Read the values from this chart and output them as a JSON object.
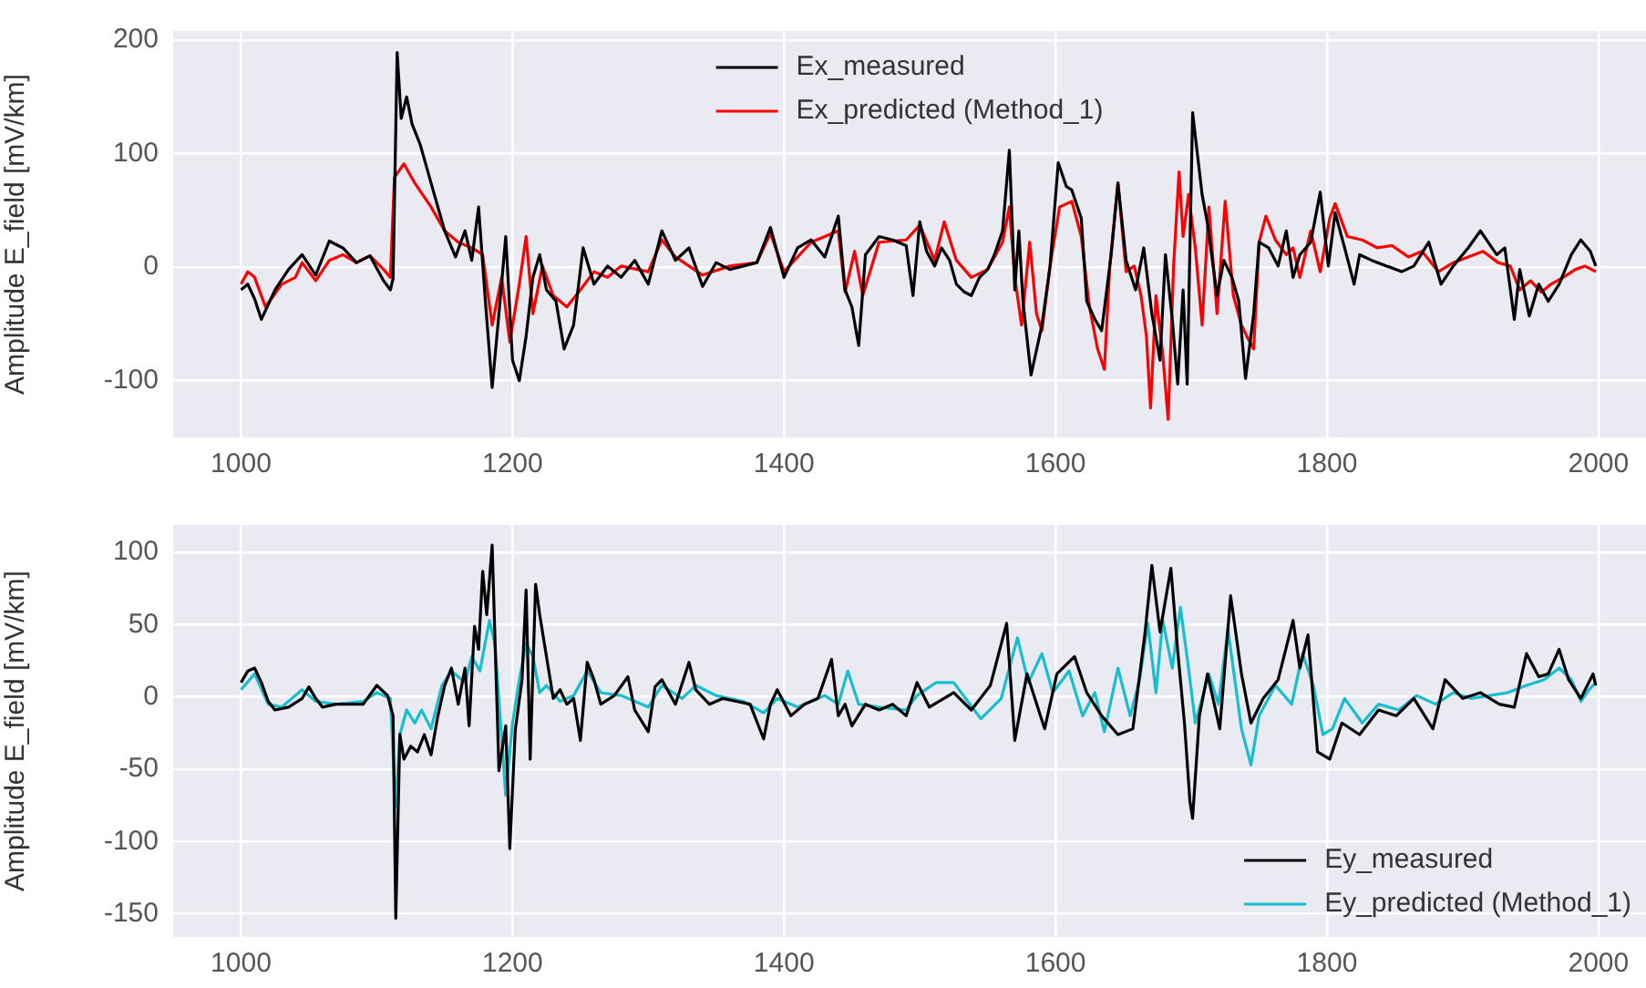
{
  "chart_data": [
    {
      "type": "line",
      "ylabel": "Amplitude E_field [mV/km]",
      "xlim": [
        950,
        2035
      ],
      "ylim": [
        -150,
        208
      ],
      "xticks": [
        1000,
        1200,
        1400,
        1600,
        1800,
        2000
      ],
      "yticks": [
        -100,
        0,
        100,
        200
      ],
      "grid": true,
      "legend": "top",
      "series": [
        {
          "name": "Ex_measured",
          "color": "#000000",
          "x": [
            1000,
            1005,
            1010,
            1015,
            1025,
            1035,
            1045,
            1055,
            1065,
            1075,
            1085,
            1095,
            1105,
            1110,
            1112,
            1115,
            1118,
            1122,
            1126,
            1132,
            1140,
            1150,
            1158,
            1165,
            1170,
            1175,
            1180,
            1185,
            1190,
            1195,
            1200,
            1205,
            1210,
            1215,
            1220,
            1225,
            1232,
            1238,
            1245,
            1252,
            1260,
            1270,
            1280,
            1290,
            1300,
            1310,
            1320,
            1330,
            1340,
            1350,
            1360,
            1370,
            1380,
            1390,
            1400,
            1410,
            1420,
            1430,
            1440,
            1445,
            1450,
            1455,
            1460,
            1470,
            1480,
            1490,
            1495,
            1500,
            1505,
            1511,
            1516,
            1522,
            1527,
            1533,
            1538,
            1544,
            1550,
            1555,
            1561,
            1566,
            1570,
            1573,
            1576,
            1582,
            1590,
            1596,
            1602,
            1608,
            1612,
            1619,
            1623,
            1629,
            1634,
            1641,
            1646,
            1652,
            1659,
            1665,
            1671,
            1677,
            1681,
            1686,
            1690,
            1694,
            1697,
            1701,
            1708,
            1712,
            1719,
            1724,
            1730,
            1735,
            1740,
            1746,
            1750,
            1757,
            1764,
            1770,
            1775,
            1780,
            1788,
            1795,
            1801,
            1806,
            1813,
            1820,
            1824,
            1833,
            1844,
            1855,
            1864,
            1875,
            1884,
            1893,
            1904,
            1913,
            1925,
            1931,
            1938,
            1942,
            1949,
            1956,
            1963,
            1971,
            1980,
            1987,
            1994,
            1998
          ],
          "values": [
            -20,
            -15,
            -28,
            -46,
            -20,
            -2,
            11,
            -7,
            23,
            17,
            4,
            10,
            -12,
            -20,
            -10,
            189,
            131,
            150,
            126,
            108,
            74,
            32,
            9,
            32,
            6,
            53,
            -30,
            -106,
            -41,
            27,
            -82,
            -100,
            -61,
            -9,
            11,
            -20,
            -30,
            -72,
            -51,
            17,
            -15,
            1,
            -9,
            6,
            -15,
            32,
            6,
            17,
            -17,
            4,
            -2,
            1,
            4,
            35,
            -9,
            17,
            24,
            9,
            45,
            -20,
            -35,
            -69,
            11,
            27,
            24,
            19,
            -25,
            40,
            14,
            1,
            17,
            6,
            -15,
            -22,
            -25,
            -9,
            -2,
            11,
            32,
            103,
            -20,
            32,
            -30,
            -95,
            -51,
            1,
            92,
            71,
            68,
            43,
            -30,
            -46,
            -56,
            11,
            74,
            6,
            -20,
            17,
            -41,
            -82,
            11,
            -46,
            -103,
            -20,
            -103,
            136,
            64,
            38,
            -25,
            6,
            -9,
            -30,
            -98,
            -41,
            22,
            17,
            1,
            32,
            -9,
            11,
            22,
            66,
            1,
            48,
            17,
            -15,
            11,
            6,
            1,
            -4,
            1,
            22,
            -15,
            1,
            17,
            32,
            11,
            17,
            -46,
            -2,
            -43,
            -15,
            -30,
            -15,
            11,
            24,
            14,
            1
          ]
        },
        {
          "name": "Ex_predicted (Method_1)",
          "color": "#ff0000",
          "x": [
            1000,
            1005,
            1010,
            1018,
            1030,
            1040,
            1045,
            1055,
            1065,
            1075,
            1085,
            1095,
            1105,
            1110,
            1113,
            1120,
            1128,
            1140,
            1150,
            1160,
            1170,
            1178,
            1185,
            1192,
            1198,
            1205,
            1210,
            1215,
            1222,
            1230,
            1240,
            1250,
            1260,
            1270,
            1280,
            1300,
            1310,
            1320,
            1340,
            1360,
            1380,
            1390,
            1400,
            1420,
            1440,
            1445,
            1452,
            1458,
            1470,
            1490,
            1500,
            1511,
            1518,
            1527,
            1538,
            1550,
            1561,
            1566,
            1570,
            1575,
            1581,
            1586,
            1590,
            1596,
            1603,
            1612,
            1619,
            1625,
            1631,
            1636,
            1640,
            1646,
            1652,
            1658,
            1663,
            1667,
            1670,
            1674,
            1679,
            1683,
            1687,
            1691,
            1694,
            1698,
            1703,
            1708,
            1713,
            1719,
            1725,
            1731,
            1737,
            1741,
            1746,
            1750,
            1755,
            1762,
            1770,
            1775,
            1780,
            1788,
            1795,
            1802,
            1806,
            1815,
            1826,
            1837,
            1848,
            1860,
            1870,
            1882,
            1893,
            1904,
            1915,
            1926,
            1935,
            1942,
            1950,
            1958,
            1965,
            1974,
            1983,
            1990,
            1998
          ],
          "values": [
            -15,
            -4,
            -9,
            -35,
            -15,
            -9,
            4,
            -12,
            6,
            11,
            4,
            10,
            -2,
            -9,
            79,
            91,
            74,
            53,
            32,
            22,
            17,
            11,
            -51,
            -9,
            -66,
            -15,
            27,
            -41,
            1,
            -25,
            -35,
            -20,
            -4,
            -9,
            1,
            -4,
            24,
            9,
            -7,
            1,
            4,
            30,
            -4,
            22,
            32,
            -22,
            14,
            -25,
            22,
            24,
            37,
            6,
            40,
            6,
            -9,
            -2,
            22,
            53,
            -9,
            -51,
            22,
            -41,
            -56,
            1,
            53,
            58,
            27,
            -35,
            -72,
            -90,
            1,
            74,
            -4,
            1,
            -25,
            -61,
            -124,
            -25,
            -77,
            -134,
            1,
            84,
            27,
            64,
            17,
            -51,
            53,
            -41,
            58,
            -25,
            -51,
            -61,
            -72,
            22,
            45,
            24,
            11,
            17,
            -9,
            32,
            -4,
            43,
            56,
            27,
            24,
            17,
            19,
            9,
            14,
            -4,
            4,
            9,
            14,
            4,
            1,
            -20,
            -12,
            -22,
            -15,
            -9,
            -2,
            1,
            -4
          ]
        }
      ]
    },
    {
      "type": "line",
      "ylabel": "Amplitude E_field [mV/km]",
      "xlim": [
        950,
        2035
      ],
      "ylim": [
        -166,
        119
      ],
      "xticks": [
        1000,
        1200,
        1400,
        1600,
        1800,
        2000
      ],
      "yticks": [
        -150,
        -100,
        -50,
        0,
        50,
        100
      ],
      "grid": true,
      "legend": "bottom right",
      "series": [
        {
          "name": "Ey_measured",
          "color": "#000000",
          "x": [
            1000,
            1005,
            1010,
            1015,
            1020,
            1025,
            1035,
            1045,
            1050,
            1055,
            1060,
            1070,
            1080,
            1090,
            1100,
            1108,
            1112,
            1114,
            1117,
            1120,
            1125,
            1130,
            1135,
            1140,
            1145,
            1150,
            1155,
            1160,
            1165,
            1168,
            1172,
            1175,
            1178,
            1181,
            1185,
            1190,
            1195,
            1198,
            1202,
            1207,
            1210,
            1213,
            1217,
            1220,
            1225,
            1230,
            1235,
            1240,
            1245,
            1250,
            1255,
            1260,
            1265,
            1275,
            1285,
            1290,
            1300,
            1305,
            1310,
            1320,
            1330,
            1335,
            1345,
            1355,
            1365,
            1375,
            1385,
            1390,
            1395,
            1405,
            1415,
            1425,
            1435,
            1440,
            1445,
            1450,
            1460,
            1470,
            1480,
            1490,
            1498,
            1507,
            1525,
            1538,
            1552,
            1564,
            1570,
            1579,
            1592,
            1601,
            1614,
            1623,
            1634,
            1646,
            1657,
            1666,
            1671,
            1677,
            1685,
            1690,
            1695,
            1699,
            1701,
            1706,
            1712,
            1721,
            1729,
            1737,
            1744,
            1753,
            1764,
            1775,
            1780,
            1786,
            1793,
            1802,
            1811,
            1824,
            1838,
            1851,
            1864,
            1878,
            1887,
            1900,
            1913,
            1927,
            1938,
            1947,
            1956,
            1963,
            1971,
            1978,
            1987,
            1996,
            1998
          ],
          "values": [
            10,
            18,
            20,
            10,
            -3,
            -9,
            -7,
            -1,
            7,
            -1,
            -7,
            -5,
            -5,
            -5,
            8,
            1,
            -13,
            -153,
            -26,
            -43,
            -34,
            -38,
            -26,
            -40,
            -13,
            8,
            20,
            -5,
            20,
            -20,
            49,
            33,
            87,
            57,
            105,
            -51,
            -20,
            -105,
            -23,
            12,
            74,
            -43,
            78,
            57,
            28,
            -1,
            5,
            -5,
            -1,
            -30,
            24,
            12,
            -5,
            1,
            14,
            -9,
            -24,
            7,
            12,
            -5,
            24,
            5,
            -5,
            -1,
            -3,
            -5,
            -29,
            -5,
            5,
            -13,
            -5,
            -1,
            26,
            -13,
            -5,
            -20,
            -5,
            -9,
            -5,
            -13,
            10,
            -7,
            3,
            -9,
            8,
            51,
            -30,
            16,
            -22,
            16,
            28,
            3,
            -13,
            -26,
            -22,
            45,
            91,
            45,
            89,
            32,
            -18,
            -72,
            -84,
            -13,
            16,
            -22,
            70,
            16,
            -18,
            -1,
            12,
            53,
            20,
            43,
            -38,
            -43,
            -18,
            -26,
            -9,
            -13,
            -1,
            -22,
            12,
            -1,
            3,
            -5,
            -7,
            30,
            14,
            16,
            33,
            12,
            -1,
            16,
            8
          ]
        },
        {
          "name": "Ey_predicted (Method_1)",
          "color": "#17becf",
          "x": [
            1000,
            1010,
            1020,
            1030,
            1045,
            1055,
            1070,
            1090,
            1100,
            1110,
            1114,
            1117,
            1122,
            1128,
            1133,
            1140,
            1148,
            1155,
            1165,
            1170,
            1176,
            1183,
            1187,
            1195,
            1200,
            1205,
            1210,
            1215,
            1220,
            1225,
            1235,
            1245,
            1255,
            1265,
            1280,
            1300,
            1310,
            1325,
            1335,
            1350,
            1370,
            1385,
            1395,
            1410,
            1430,
            1440,
            1447,
            1455,
            1470,
            1490,
            1498,
            1512,
            1525,
            1545,
            1560,
            1566,
            1572,
            1580,
            1590,
            1598,
            1610,
            1620,
            1629,
            1636,
            1646,
            1655,
            1662,
            1668,
            1674,
            1679,
            1686,
            1692,
            1698,
            1703,
            1713,
            1720,
            1727,
            1737,
            1744,
            1750,
            1762,
            1774,
            1782,
            1790,
            1797,
            1804,
            1813,
            1826,
            1838,
            1853,
            1866,
            1880,
            1893,
            1906,
            1920,
            1933,
            1947,
            1960,
            1971,
            1980,
            1987,
            1993,
            1998
          ],
          "values": [
            5,
            16,
            -5,
            -7,
            5,
            -3,
            -5,
            -3,
            3,
            -1,
            -76,
            -26,
            -9,
            -18,
            -9,
            -22,
            8,
            18,
            10,
            28,
            18,
            53,
            37,
            -68,
            -18,
            12,
            37,
            28,
            3,
            8,
            -3,
            1,
            18,
            3,
            1,
            -7,
            8,
            -1,
            8,
            1,
            -3,
            -11,
            -1,
            -7,
            1,
            -5,
            18,
            -5,
            -7,
            -9,
            1,
            10,
            10,
            -15,
            -1,
            20,
            41,
            10,
            30,
            3,
            18,
            -13,
            3,
            -24,
            20,
            -13,
            12,
            51,
            3,
            53,
            20,
            62,
            20,
            -18,
            16,
            -5,
            47,
            -22,
            -47,
            -13,
            8,
            -5,
            30,
            8,
            -26,
            -22,
            -1,
            -18,
            -5,
            -9,
            1,
            -5,
            3,
            -1,
            1,
            3,
            8,
            12,
            20,
            12,
            -3,
            5,
            10
          ]
        }
      ]
    }
  ]
}
